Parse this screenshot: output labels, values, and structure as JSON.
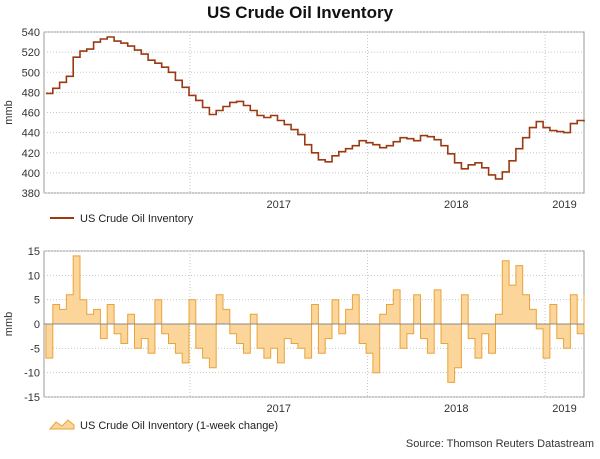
{
  "page": {
    "title": "US Crude Oil Inventory",
    "source": "Source: Thomson Reuters Datastream"
  },
  "colors": {
    "level_line": "#9b3a12",
    "change_fill": "#fbd59a",
    "change_stroke": "#e8a43a",
    "grid": "#c8c8c8",
    "plot_bg": "#ffffff"
  },
  "chart_data": [
    {
      "type": "line",
      "title": "US Crude Oil Inventory",
      "ylabel": "mmb",
      "ylim": [
        380,
        540
      ],
      "yticks": [
        380,
        400,
        420,
        440,
        460,
        480,
        500,
        520,
        540
      ],
      "xlim": [
        "2016-03-07",
        "2019-03-22"
      ],
      "xtick_labels": [
        "2017",
        "2018",
        "2019"
      ],
      "year_boundaries": [
        "2017-01-01",
        "2018-01-01",
        "2019-01-01"
      ],
      "grid": true,
      "legend_position": "bottom-left",
      "series": [
        {
          "name": "US Crude Oil Inventory",
          "x": [
            "2016-03-11",
            "2016-03-25",
            "2016-04-08",
            "2016-04-22",
            "2016-05-06",
            "2016-05-20",
            "2016-06-03",
            "2016-06-17",
            "2016-07-01",
            "2016-07-15",
            "2016-07-29",
            "2016-08-12",
            "2016-08-26",
            "2016-09-09",
            "2016-09-23",
            "2016-10-07",
            "2016-10-21",
            "2016-11-04",
            "2016-11-18",
            "2016-12-02",
            "2016-12-16",
            "2016-12-30",
            "2017-01-13",
            "2017-01-27",
            "2017-02-10",
            "2017-02-24",
            "2017-03-10",
            "2017-03-24",
            "2017-04-07",
            "2017-04-21",
            "2017-05-05",
            "2017-05-19",
            "2017-06-02",
            "2017-06-16",
            "2017-06-30",
            "2017-07-14",
            "2017-07-28",
            "2017-08-11",
            "2017-08-25",
            "2017-09-08",
            "2017-09-22",
            "2017-10-06",
            "2017-10-20",
            "2017-11-03",
            "2017-11-17",
            "2017-12-01",
            "2017-12-15",
            "2017-12-29",
            "2018-01-12",
            "2018-01-26",
            "2018-02-09",
            "2018-02-23",
            "2018-03-09",
            "2018-03-23",
            "2018-04-06",
            "2018-04-20",
            "2018-05-04",
            "2018-05-18",
            "2018-06-01",
            "2018-06-15",
            "2018-06-29",
            "2018-07-13",
            "2018-07-27",
            "2018-08-10",
            "2018-08-24",
            "2018-09-07",
            "2018-09-21",
            "2018-10-05",
            "2018-10-19",
            "2018-11-02",
            "2018-11-16",
            "2018-11-30",
            "2018-12-14",
            "2018-12-28",
            "2019-01-11",
            "2019-01-25",
            "2019-02-08",
            "2019-02-22",
            "2019-03-08",
            "2019-03-22"
          ],
          "values": [
            479,
            484,
            490,
            496,
            515,
            521,
            523,
            530,
            533,
            535,
            531,
            529,
            526,
            522,
            518,
            512,
            509,
            505,
            500,
            492,
            485,
            477,
            472,
            465,
            458,
            462,
            466,
            470,
            471,
            467,
            462,
            457,
            455,
            457,
            452,
            448,
            443,
            438,
            428,
            420,
            413,
            411,
            417,
            421,
            424,
            427,
            432,
            430,
            428,
            425,
            427,
            431,
            435,
            434,
            432,
            437,
            436,
            433,
            427,
            419,
            410,
            404,
            408,
            410,
            405,
            398,
            394,
            401,
            412,
            424,
            435,
            445,
            451,
            445,
            442,
            441,
            440,
            449,
            452,
            451
          ]
        }
      ]
    },
    {
      "type": "bar",
      "title": "US Crude Oil Inventory (1-week change)",
      "ylabel": "mmb",
      "ylim": [
        -15,
        15
      ],
      "yticks": [
        -15,
        -10,
        -5,
        0,
        5,
        10,
        15
      ],
      "xlim": [
        "2016-03-07",
        "2019-03-22"
      ],
      "xtick_labels": [
        "2017",
        "2018",
        "2019"
      ],
      "year_boundaries": [
        "2017-01-01",
        "2018-01-01",
        "2019-01-01"
      ],
      "grid": true,
      "legend_position": "bottom-left",
      "series": [
        {
          "name": "US Crude Oil Inventory (1-week change)",
          "x": [
            "2016-03-11",
            "2016-03-25",
            "2016-04-08",
            "2016-04-22",
            "2016-05-06",
            "2016-05-20",
            "2016-06-03",
            "2016-06-17",
            "2016-07-01",
            "2016-07-15",
            "2016-07-29",
            "2016-08-12",
            "2016-08-26",
            "2016-09-09",
            "2016-09-23",
            "2016-10-07",
            "2016-10-21",
            "2016-11-04",
            "2016-11-18",
            "2016-12-02",
            "2016-12-16",
            "2016-12-30",
            "2017-01-13",
            "2017-01-27",
            "2017-02-10",
            "2017-02-24",
            "2017-03-10",
            "2017-03-24",
            "2017-04-07",
            "2017-04-21",
            "2017-05-05",
            "2017-05-19",
            "2017-06-02",
            "2017-06-16",
            "2017-06-30",
            "2017-07-14",
            "2017-07-28",
            "2017-08-11",
            "2017-08-25",
            "2017-09-08",
            "2017-09-22",
            "2017-10-06",
            "2017-10-20",
            "2017-11-03",
            "2017-11-17",
            "2017-12-01",
            "2017-12-15",
            "2017-12-29",
            "2018-01-12",
            "2018-01-26",
            "2018-02-09",
            "2018-02-23",
            "2018-03-09",
            "2018-03-23",
            "2018-04-06",
            "2018-04-20",
            "2018-05-04",
            "2018-05-18",
            "2018-06-01",
            "2018-06-15",
            "2018-06-29",
            "2018-07-13",
            "2018-07-27",
            "2018-08-10",
            "2018-08-24",
            "2018-09-07",
            "2018-09-21",
            "2018-10-05",
            "2018-10-19",
            "2018-11-02",
            "2018-11-16",
            "2018-11-30",
            "2018-12-14",
            "2018-12-28",
            "2019-01-11",
            "2019-01-25",
            "2019-02-08",
            "2019-02-22",
            "2019-03-08",
            "2019-03-22"
          ],
          "values": [
            -7,
            4,
            3,
            6,
            14,
            5,
            2,
            3,
            -3,
            4,
            -2,
            -4,
            2,
            -5,
            -3,
            -6,
            5,
            -2,
            -4,
            -6,
            -8,
            5,
            -5,
            -7,
            -9,
            6,
            3,
            -2,
            -4,
            -6,
            2,
            -5,
            -7,
            -5,
            -8,
            -3,
            -4,
            -5,
            -7,
            4,
            -6,
            -3,
            5,
            -2,
            3,
            6,
            -4,
            -6,
            -10,
            2,
            4,
            7,
            -5,
            -2,
            6,
            -3,
            -6,
            7,
            -4,
            -12,
            -9,
            6,
            -3,
            -7,
            -2,
            -6,
            2,
            13,
            8,
            12,
            6,
            3,
            -1,
            -7,
            4,
            -3,
            -5,
            6,
            -2,
            6
          ]
        }
      ]
    }
  ]
}
